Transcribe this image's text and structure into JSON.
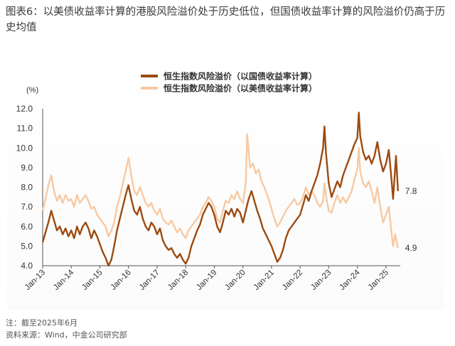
{
  "title": "图表6：以美债收益率计算的港股风险溢价处于历史低位，但国债收益率计算的风险溢价仍高于历史均值",
  "notes": {
    "note": "注：截至2025年6月",
    "source": "资料来源：Wind，中金公司研究部"
  },
  "chart_data": {
    "type": "line",
    "title": "",
    "ylabel": "(%)",
    "xlabel": "",
    "ylim": [
      4.0,
      12.0
    ],
    "yticks": [
      "12.0",
      "11.0",
      "10.0",
      "9.0",
      "8.0",
      "7.0",
      "6.0",
      "5.0",
      "4.0"
    ],
    "xticks": [
      "Jan-13",
      "Jan-14",
      "Jan-15",
      "Jan-16",
      "Jan-17",
      "Jan-18",
      "Jan-19",
      "Jan-20",
      "Jan-21",
      "Jan-22",
      "Jan-23",
      "Jan-24",
      "Jan-25"
    ],
    "xrange": [
      2013.0,
      2025.5
    ],
    "legend_position": "top-center",
    "grid": false,
    "series": [
      {
        "name": "恒生指数风险溢价（以国债收益率计算）",
        "color": "#9c4a0f",
        "end_label": "7.8",
        "points": [
          [
            2013.0,
            5.2
          ],
          [
            2013.1,
            5.7
          ],
          [
            2013.2,
            6.2
          ],
          [
            2013.3,
            6.8
          ],
          [
            2013.4,
            6.3
          ],
          [
            2013.5,
            5.8
          ],
          [
            2013.6,
            6.0
          ],
          [
            2013.7,
            5.6
          ],
          [
            2013.8,
            5.9
          ],
          [
            2013.9,
            5.5
          ],
          [
            2014.0,
            5.8
          ],
          [
            2014.1,
            5.4
          ],
          [
            2014.2,
            6.0
          ],
          [
            2014.3,
            5.6
          ],
          [
            2014.4,
            6.0
          ],
          [
            2014.5,
            6.2
          ],
          [
            2014.6,
            5.9
          ],
          [
            2014.7,
            5.4
          ],
          [
            2014.8,
            5.8
          ],
          [
            2014.9,
            5.5
          ],
          [
            2015.0,
            5.1
          ],
          [
            2015.1,
            4.7
          ],
          [
            2015.2,
            4.4
          ],
          [
            2015.3,
            4.0
          ],
          [
            2015.4,
            4.3
          ],
          [
            2015.5,
            5.0
          ],
          [
            2015.6,
            5.8
          ],
          [
            2015.7,
            6.4
          ],
          [
            2015.8,
            7.0
          ],
          [
            2015.9,
            7.6
          ],
          [
            2016.0,
            8.1
          ],
          [
            2016.1,
            7.4
          ],
          [
            2016.2,
            6.8
          ],
          [
            2016.3,
            6.6
          ],
          [
            2016.4,
            7.0
          ],
          [
            2016.5,
            6.4
          ],
          [
            2016.6,
            6.0
          ],
          [
            2016.7,
            5.8
          ],
          [
            2016.8,
            6.2
          ],
          [
            2016.9,
            6.0
          ],
          [
            2017.0,
            5.6
          ],
          [
            2017.1,
            5.9
          ],
          [
            2017.2,
            5.3
          ],
          [
            2017.3,
            5.0
          ],
          [
            2017.4,
            4.8
          ],
          [
            2017.5,
            4.9
          ],
          [
            2017.6,
            4.6
          ],
          [
            2017.7,
            4.4
          ],
          [
            2017.8,
            4.6
          ],
          [
            2017.9,
            4.3
          ],
          [
            2018.0,
            4.1
          ],
          [
            2018.1,
            4.4
          ],
          [
            2018.2,
            5.0
          ],
          [
            2018.3,
            5.4
          ],
          [
            2018.4,
            5.8
          ],
          [
            2018.5,
            6.1
          ],
          [
            2018.6,
            6.6
          ],
          [
            2018.7,
            6.9
          ],
          [
            2018.8,
            7.2
          ],
          [
            2018.9,
            7.0
          ],
          [
            2019.0,
            6.6
          ],
          [
            2019.1,
            6.0
          ],
          [
            2019.2,
            5.7
          ],
          [
            2019.3,
            6.2
          ],
          [
            2019.4,
            6.8
          ],
          [
            2019.5,
            6.6
          ],
          [
            2019.6,
            6.9
          ],
          [
            2019.7,
            6.5
          ],
          [
            2019.8,
            6.9
          ],
          [
            2019.9,
            6.7
          ],
          [
            2020.0,
            6.2
          ],
          [
            2020.1,
            6.8
          ],
          [
            2020.2,
            7.4
          ],
          [
            2020.3,
            7.8
          ],
          [
            2020.4,
            7.3
          ],
          [
            2020.5,
            6.8
          ],
          [
            2020.6,
            6.4
          ],
          [
            2020.7,
            5.9
          ],
          [
            2020.8,
            5.6
          ],
          [
            2020.9,
            5.3
          ],
          [
            2021.0,
            5.0
          ],
          [
            2021.1,
            4.6
          ],
          [
            2021.2,
            4.2
          ],
          [
            2021.3,
            4.4
          ],
          [
            2021.4,
            4.8
          ],
          [
            2021.5,
            5.4
          ],
          [
            2021.6,
            5.8
          ],
          [
            2021.7,
            6.0
          ],
          [
            2021.8,
            6.2
          ],
          [
            2021.9,
            6.4
          ],
          [
            2022.0,
            6.6
          ],
          [
            2022.1,
            7.1
          ],
          [
            2022.2,
            7.6
          ],
          [
            2022.3,
            7.3
          ],
          [
            2022.4,
            7.8
          ],
          [
            2022.5,
            8.2
          ],
          [
            2022.6,
            8.6
          ],
          [
            2022.7,
            9.2
          ],
          [
            2022.8,
            10.0
          ],
          [
            2022.85,
            11.1
          ],
          [
            2022.9,
            9.8
          ],
          [
            2023.0,
            8.2
          ],
          [
            2023.1,
            7.5
          ],
          [
            2023.2,
            7.9
          ],
          [
            2023.3,
            8.3
          ],
          [
            2023.4,
            8.0
          ],
          [
            2023.5,
            8.6
          ],
          [
            2023.6,
            9.0
          ],
          [
            2023.7,
            9.4
          ],
          [
            2023.8,
            9.8
          ],
          [
            2023.9,
            10.2
          ],
          [
            2024.0,
            10.5
          ],
          [
            2024.05,
            11.8
          ],
          [
            2024.1,
            10.6
          ],
          [
            2024.2,
            9.8
          ],
          [
            2024.3,
            9.4
          ],
          [
            2024.4,
            9.6
          ],
          [
            2024.5,
            9.2
          ],
          [
            2024.6,
            9.6
          ],
          [
            2024.7,
            10.3
          ],
          [
            2024.8,
            9.4
          ],
          [
            2024.9,
            8.8
          ],
          [
            2025.0,
            9.2
          ],
          [
            2025.1,
            9.9
          ],
          [
            2025.2,
            8.3
          ],
          [
            2025.25,
            7.4
          ],
          [
            2025.35,
            9.6
          ],
          [
            2025.42,
            7.8
          ]
        ]
      },
      {
        "name": "恒生指数风险溢价（以美债收益率计算）",
        "color": "#f7c9a2",
        "end_label": "4.9",
        "points": [
          [
            2013.0,
            6.8
          ],
          [
            2013.1,
            7.4
          ],
          [
            2013.2,
            8.1
          ],
          [
            2013.3,
            8.6
          ],
          [
            2013.4,
            7.8
          ],
          [
            2013.5,
            7.3
          ],
          [
            2013.6,
            7.6
          ],
          [
            2013.7,
            7.2
          ],
          [
            2013.8,
            7.6
          ],
          [
            2013.9,
            7.3
          ],
          [
            2014.0,
            7.4
          ],
          [
            2014.1,
            7.0
          ],
          [
            2014.2,
            7.6
          ],
          [
            2014.3,
            7.2
          ],
          [
            2014.4,
            7.4
          ],
          [
            2014.5,
            7.6
          ],
          [
            2014.6,
            7.3
          ],
          [
            2014.7,
            6.9
          ],
          [
            2014.8,
            7.0
          ],
          [
            2014.9,
            6.6
          ],
          [
            2015.0,
            6.4
          ],
          [
            2015.1,
            6.2
          ],
          [
            2015.2,
            6.0
          ],
          [
            2015.3,
            5.5
          ],
          [
            2015.4,
            5.8
          ],
          [
            2015.5,
            6.2
          ],
          [
            2015.6,
            7.0
          ],
          [
            2015.7,
            7.5
          ],
          [
            2015.8,
            8.2
          ],
          [
            2015.9,
            8.8
          ],
          [
            2016.0,
            9.5
          ],
          [
            2016.1,
            8.6
          ],
          [
            2016.2,
            7.8
          ],
          [
            2016.3,
            7.6
          ],
          [
            2016.4,
            8.0
          ],
          [
            2016.5,
            7.6
          ],
          [
            2016.6,
            7.2
          ],
          [
            2016.7,
            7.0
          ],
          [
            2016.8,
            7.2
          ],
          [
            2016.9,
            6.8
          ],
          [
            2017.0,
            6.6
          ],
          [
            2017.1,
            6.9
          ],
          [
            2017.2,
            6.4
          ],
          [
            2017.3,
            6.2
          ],
          [
            2017.4,
            6.1
          ],
          [
            2017.5,
            6.3
          ],
          [
            2017.6,
            6.0
          ],
          [
            2017.7,
            5.7
          ],
          [
            2017.8,
            5.9
          ],
          [
            2017.9,
            5.6
          ],
          [
            2018.0,
            5.4
          ],
          [
            2018.1,
            5.8
          ],
          [
            2018.2,
            6.0
          ],
          [
            2018.3,
            6.2
          ],
          [
            2018.4,
            6.4
          ],
          [
            2018.5,
            6.6
          ],
          [
            2018.6,
            7.0
          ],
          [
            2018.7,
            7.2
          ],
          [
            2018.8,
            7.5
          ],
          [
            2018.9,
            7.3
          ],
          [
            2019.0,
            7.0
          ],
          [
            2019.1,
            6.4
          ],
          [
            2019.2,
            6.2
          ],
          [
            2019.3,
            6.8
          ],
          [
            2019.4,
            7.3
          ],
          [
            2019.5,
            7.2
          ],
          [
            2019.6,
            7.6
          ],
          [
            2019.7,
            7.4
          ],
          [
            2019.8,
            7.8
          ],
          [
            2019.9,
            7.4
          ],
          [
            2020.0,
            7.2
          ],
          [
            2020.1,
            8.2
          ],
          [
            2020.15,
            10.7
          ],
          [
            2020.25,
            9.0
          ],
          [
            2020.35,
            9.2
          ],
          [
            2020.45,
            8.7
          ],
          [
            2020.55,
            8.9
          ],
          [
            2020.65,
            8.3
          ],
          [
            2020.75,
            8.0
          ],
          [
            2020.9,
            7.4
          ],
          [
            2021.0,
            6.9
          ],
          [
            2021.1,
            6.4
          ],
          [
            2021.2,
            6.0
          ],
          [
            2021.3,
            6.2
          ],
          [
            2021.4,
            6.5
          ],
          [
            2021.5,
            6.8
          ],
          [
            2021.6,
            7.0
          ],
          [
            2021.7,
            7.2
          ],
          [
            2021.8,
            7.4
          ],
          [
            2021.9,
            7.1
          ],
          [
            2022.0,
            7.2
          ],
          [
            2022.1,
            7.5
          ],
          [
            2022.2,
            8.0
          ],
          [
            2022.3,
            7.6
          ],
          [
            2022.4,
            7.8
          ],
          [
            2022.5,
            7.6
          ],
          [
            2022.6,
            7.2
          ],
          [
            2022.7,
            7.0
          ],
          [
            2022.8,
            7.3
          ],
          [
            2022.85,
            8.2
          ],
          [
            2022.9,
            7.6
          ],
          [
            2023.0,
            6.8
          ],
          [
            2023.1,
            6.7
          ],
          [
            2023.2,
            7.2
          ],
          [
            2023.3,
            7.6
          ],
          [
            2023.4,
            7.2
          ],
          [
            2023.5,
            7.5
          ],
          [
            2023.6,
            7.2
          ],
          [
            2023.7,
            7.5
          ],
          [
            2023.8,
            7.8
          ],
          [
            2023.9,
            8.4
          ],
          [
            2024.0,
            8.9
          ],
          [
            2024.05,
            10.0
          ],
          [
            2024.1,
            8.8
          ],
          [
            2024.2,
            8.2
          ],
          [
            2024.3,
            8.0
          ],
          [
            2024.4,
            8.3
          ],
          [
            2024.5,
            7.8
          ],
          [
            2024.6,
            7.2
          ],
          [
            2024.7,
            8.0
          ],
          [
            2024.8,
            7.0
          ],
          [
            2024.9,
            6.2
          ],
          [
            2025.0,
            6.6
          ],
          [
            2025.1,
            7.0
          ],
          [
            2025.2,
            5.6
          ],
          [
            2025.25,
            5.0
          ],
          [
            2025.32,
            5.6
          ],
          [
            2025.42,
            4.9
          ]
        ]
      }
    ]
  }
}
